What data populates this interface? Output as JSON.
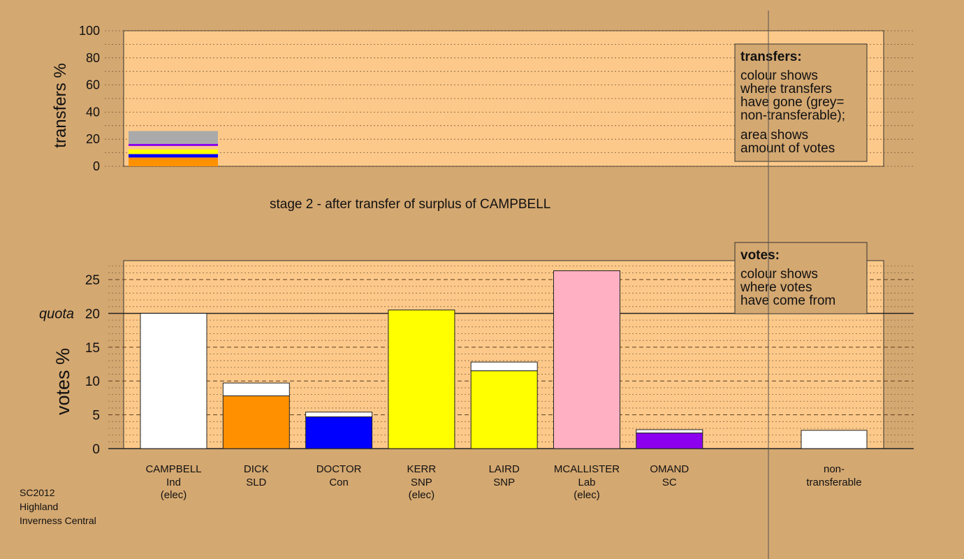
{
  "meta": {
    "lines": [
      "SC2012",
      "Highland",
      "Inverness Central"
    ]
  },
  "stage_title": "stage 2 - after transfer of surplus of CAMPBELL",
  "colors": {
    "background": "#d4a871",
    "plot_bg": "#fdc98a",
    "white": "#ffffff",
    "orange": "#ff9100",
    "blue": "#0000ff",
    "yellow": "#ffff00",
    "pink": "#ffb0c2",
    "purple": "#8c00ef",
    "grey": "#aaaaaa"
  },
  "legends": {
    "transfers": {
      "title": "transfers:",
      "lines": [
        "colour shows",
        "where transfers",
        "have gone (grey=",
        "non-transferable);",
        "area shows",
        "amount of votes"
      ]
    },
    "votes": {
      "title": "votes:",
      "lines": [
        "colour shows",
        "where votes",
        "have come from"
      ]
    }
  },
  "chart_data": [
    {
      "type": "bar",
      "ylabel": "transfers %",
      "ylim": [
        0,
        100
      ],
      "yticks": [
        0,
        20,
        40,
        60,
        80,
        100
      ],
      "stacked_segments": [
        {
          "color": "#ff9100",
          "value": 6.5
        },
        {
          "color": "#0000ff",
          "value": 2.5
        },
        {
          "color": "#ffff00",
          "value": 3.5
        },
        {
          "color": "#fdc98a",
          "value": 2.5
        },
        {
          "color": "#8c00ef",
          "value": 1.5
        },
        {
          "color": "#aaaaaa",
          "value": 9.5
        }
      ]
    },
    {
      "type": "bar",
      "ylabel": "votes %",
      "ylim": [
        0,
        27.8
      ],
      "yticks": [
        0,
        5,
        10,
        15,
        20,
        25
      ],
      "quota": {
        "label": "quota",
        "value": 20
      },
      "candidates": [
        {
          "name": "CAMPBELL",
          "party": "Ind",
          "status": "(elec)",
          "color": "#ffffff",
          "base": 20.0,
          "transfer": 0
        },
        {
          "name": "DICK",
          "party": "SLD",
          "status": "",
          "color": "#ff9100",
          "base": 7.8,
          "transfer": 1.9
        },
        {
          "name": "DOCTOR",
          "party": "Con",
          "status": "",
          "color": "#0000ff",
          "base": 4.7,
          "transfer": 0.7
        },
        {
          "name": "KERR",
          "party": "SNP",
          "status": "(elec)",
          "color": "#ffff00",
          "base": 20.5,
          "transfer": 0
        },
        {
          "name": "LAIRD",
          "party": "SNP",
          "status": "",
          "color": "#ffff00",
          "base": 11.5,
          "transfer": 1.3
        },
        {
          "name": "MCALLISTER",
          "party": "Lab",
          "status": "(elec)",
          "color": "#ffb0c2",
          "base": 26.3,
          "transfer": 0
        },
        {
          "name": "OMAND",
          "party": "SC",
          "status": "",
          "color": "#8c00ef",
          "base": 2.3,
          "transfer": 0.5
        }
      ],
      "nontransferable": {
        "label_line1": "non-",
        "label_line2": "transferable",
        "value": 2.7,
        "color": "#ffffff"
      }
    }
  ]
}
